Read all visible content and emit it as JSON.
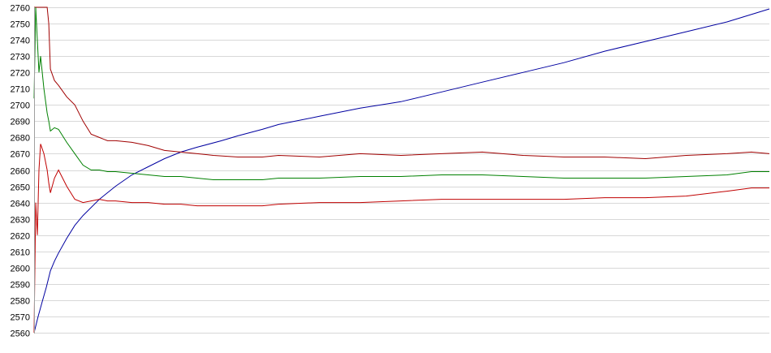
{
  "chart_data": {
    "type": "line",
    "title": "",
    "xlabel": "",
    "ylabel": "",
    "ylim": [
      2560,
      2760
    ],
    "y_ticks": [
      2560,
      2570,
      2580,
      2590,
      2600,
      2610,
      2620,
      2630,
      2640,
      2650,
      2660,
      2670,
      2680,
      2690,
      2700,
      2710,
      2720,
      2730,
      2740,
      2750,
      2760
    ],
    "grid": true,
    "legend": "none",
    "series": [
      {
        "color": "#0000a0",
        "x": [
          0,
          5,
          10,
          15,
          20,
          25,
          30,
          40,
          50,
          60,
          80,
          100,
          120,
          140,
          160,
          180,
          200,
          230,
          250,
          280,
          300,
          350,
          400,
          450,
          500,
          550,
          600,
          650,
          700,
          750,
          800,
          850,
          902
        ],
        "y": [
          2560,
          2570,
          2579,
          2588,
          2598,
          2604,
          2609,
          2618,
          2626,
          2632,
          2642,
          2650,
          2657,
          2662,
          2667,
          2671,
          2674,
          2678,
          2681,
          2685,
          2688,
          2693,
          2698,
          2702,
          2708,
          2714,
          2720,
          2726,
          2733,
          2739,
          2745,
          2751,
          2759
        ]
      },
      {
        "color": "#a00000",
        "x": [
          0,
          2,
          4,
          6,
          8,
          12,
          16,
          18,
          20,
          25,
          30,
          40,
          50,
          60,
          70,
          80,
          90,
          100,
          120,
          140,
          160,
          180,
          200,
          220,
          250,
          280,
          300,
          350,
          400,
          450,
          500,
          550,
          600,
          650,
          700,
          750,
          800,
          850,
          880,
          902
        ],
        "y": [
          2760,
          2760,
          2760,
          2760,
          2760,
          2760,
          2760,
          2750,
          2722,
          2715,
          2712,
          2705,
          2700,
          2690,
          2682,
          2680,
          2678,
          2678,
          2677,
          2675,
          2672,
          2671,
          2670,
          2669,
          2668,
          2668,
          2669,
          2668,
          2670,
          2669,
          2670,
          2671,
          2669,
          2668,
          2668,
          2667,
          2669,
          2670,
          2671,
          2670
        ]
      },
      {
        "color": "#008000",
        "x": [
          0,
          2,
          4,
          6,
          8,
          12,
          16,
          18,
          20,
          25,
          30,
          40,
          50,
          60,
          70,
          80,
          90,
          100,
          120,
          140,
          160,
          180,
          200,
          220,
          250,
          280,
          300,
          350,
          400,
          450,
          500,
          550,
          600,
          650,
          700,
          750,
          800,
          850,
          880,
          902
        ],
        "y": [
          2704,
          2760,
          2740,
          2720,
          2730,
          2710,
          2695,
          2690,
          2684,
          2686,
          2685,
          2677,
          2670,
          2663,
          2660,
          2660,
          2659,
          2659,
          2658,
          2657,
          2656,
          2656,
          2655,
          2654,
          2654,
          2654,
          2655,
          2655,
          2656,
          2656,
          2657,
          2657,
          2656,
          2655,
          2655,
          2655,
          2656,
          2657,
          2659,
          2659
        ]
      },
      {
        "color": "#c00000",
        "x": [
          0,
          2,
          4,
          6,
          8,
          12,
          16,
          18,
          20,
          25,
          30,
          40,
          50,
          60,
          70,
          80,
          90,
          100,
          120,
          140,
          160,
          180,
          200,
          220,
          250,
          280,
          300,
          350,
          400,
          450,
          500,
          550,
          600,
          650,
          700,
          750,
          800,
          850,
          880,
          902
        ],
        "y": [
          2560,
          2640,
          2620,
          2660,
          2676,
          2670,
          2660,
          2652,
          2646,
          2655,
          2660,
          2650,
          2642,
          2640,
          2641,
          2642,
          2641,
          2641,
          2640,
          2640,
          2639,
          2639,
          2638,
          2638,
          2638,
          2638,
          2639,
          2640,
          2640,
          2641,
          2642,
          2642,
          2642,
          2642,
          2643,
          2643,
          2644,
          2647,
          2649,
          2649
        ]
      }
    ]
  }
}
